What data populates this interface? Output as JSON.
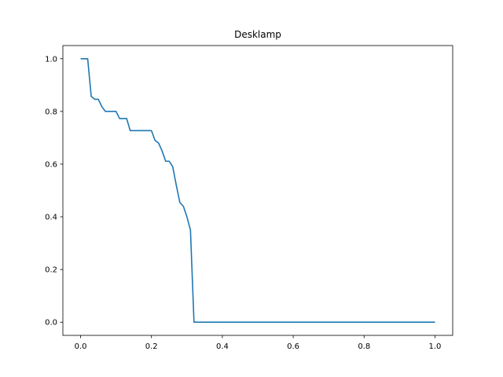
{
  "chart_data": {
    "type": "line",
    "title": "Desklamp",
    "xlabel": "",
    "ylabel": "",
    "xlim": [
      -0.05,
      1.05
    ],
    "ylim": [
      -0.05,
      1.05
    ],
    "grid": false,
    "line_color": "#1f77b4",
    "x_ticks": [
      {
        "value": 0.0,
        "label": "0.0"
      },
      {
        "value": 0.2,
        "label": "0.2"
      },
      {
        "value": 0.4,
        "label": "0.4"
      },
      {
        "value": 0.6,
        "label": "0.6"
      },
      {
        "value": 0.8,
        "label": "0.8"
      },
      {
        "value": 1.0,
        "label": "1.0"
      }
    ],
    "y_ticks": [
      {
        "value": 0.0,
        "label": "0.0"
      },
      {
        "value": 0.2,
        "label": "0.2"
      },
      {
        "value": 0.4,
        "label": "0.4"
      },
      {
        "value": 0.6,
        "label": "0.6"
      },
      {
        "value": 0.8,
        "label": "0.8"
      },
      {
        "value": 1.0,
        "label": "1.0"
      }
    ],
    "series": [
      {
        "x": [
          0.0,
          0.02,
          0.03,
          0.04,
          0.05,
          0.06,
          0.07,
          0.08,
          0.09,
          0.1,
          0.11,
          0.12,
          0.13,
          0.14,
          0.15,
          0.16,
          0.17,
          0.18,
          0.19,
          0.2,
          0.21,
          0.22,
          0.23,
          0.24,
          0.25,
          0.26,
          0.27,
          0.28,
          0.29,
          0.3,
          0.31,
          0.32,
          0.33,
          0.4,
          0.5,
          0.6,
          0.7,
          0.8,
          0.9,
          1.0
        ],
        "y": [
          1.0,
          1.0,
          0.857,
          0.846,
          0.846,
          0.818,
          0.8,
          0.8,
          0.8,
          0.8,
          0.773,
          0.773,
          0.773,
          0.727,
          0.727,
          0.727,
          0.727,
          0.727,
          0.727,
          0.727,
          0.69,
          0.68,
          0.65,
          0.611,
          0.611,
          0.59,
          0.52,
          0.455,
          0.44,
          0.4,
          0.35,
          0.0,
          0.0,
          0.0,
          0.0,
          0.0,
          0.0,
          0.0,
          0.0,
          0.0
        ]
      }
    ]
  }
}
